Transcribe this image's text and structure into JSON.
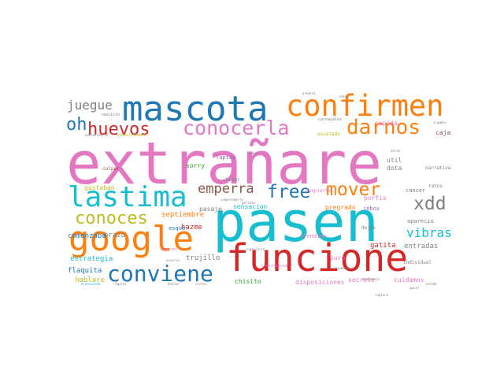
{
  "chart_data": {
    "type": "wordcloud",
    "grid": false,
    "legend": "none",
    "words": [
      {
        "text": "extrañare",
        "weight": 100,
        "color": "#e377c2"
      },
      {
        "text": "pasen",
        "weight": 92,
        "color": "#17becf"
      },
      {
        "text": "funcione",
        "weight": 66,
        "color": "#d62728"
      },
      {
        "text": "mascota",
        "weight": 58,
        "color": "#1f77b4"
      },
      {
        "text": "google",
        "weight": 52,
        "color": "#ff7f0e"
      },
      {
        "text": "confirmen",
        "weight": 48,
        "color": "#ff7f0e"
      },
      {
        "text": "lastima",
        "weight": 46,
        "color": "#17becf"
      },
      {
        "text": "conviene",
        "weight": 36,
        "color": "#1f77b4"
      },
      {
        "text": "darnos",
        "weight": 32,
        "color": "#ff7f0e"
      },
      {
        "text": "conocerla",
        "weight": 30,
        "color": "#e377c2"
      },
      {
        "text": "huevos",
        "weight": 28,
        "color": "#d62728"
      },
      {
        "text": "conoces",
        "weight": 28,
        "color": "#bcbd22"
      },
      {
        "text": "mover",
        "weight": 28,
        "color": "#ff7f0e"
      },
      {
        "text": "free",
        "weight": 27,
        "color": "#1f77b4"
      },
      {
        "text": "xdd",
        "weight": 27,
        "color": "#7f7f7f"
      },
      {
        "text": "oh",
        "weight": 26,
        "color": "#1f77b4"
      },
      {
        "text": "emperra",
        "weight": 22,
        "color": "#8c564b"
      },
      {
        "text": "juegue",
        "weight": 20,
        "color": "#7f7f7f"
      },
      {
        "text": "vibras",
        "weight": 20,
        "color": "#17becf"
      },
      {
        "text": "septiembre",
        "weight": 12,
        "color": "#ff7f0e"
      },
      {
        "text": "hazme",
        "weight": 11,
        "color": "#d62728"
      },
      {
        "text": "brazo",
        "weight": 11,
        "color": "#7f7f7f"
      },
      {
        "text": "comenzaba",
        "weight": 11,
        "color": "#1f77b4"
      },
      {
        "text": "estrategia",
        "weight": 11,
        "color": "#17becf"
      },
      {
        "text": "trujillo",
        "weight": 11,
        "color": "#7f7f7f"
      },
      {
        "text": "flaquita",
        "weight": 11,
        "color": "#1f77b4"
      },
      {
        "text": "hablare",
        "weight": 11,
        "color": "#bcbd22"
      },
      {
        "text": "chisito",
        "weight": 10,
        "color": "#2ca02c"
      },
      {
        "text": "disposiciones",
        "weight": 10,
        "color": "#e377c2"
      },
      {
        "text": "secreto",
        "weight": 10,
        "color": "#e377c2"
      },
      {
        "text": "cuidamos",
        "weight": 10,
        "color": "#e377c2"
      },
      {
        "text": "gatita",
        "weight": 11,
        "color": "#d62728"
      },
      {
        "text": "entradas",
        "weight": 11,
        "color": "#7f7f7f"
      },
      {
        "text": "puro",
        "weight": 10,
        "color": "#e377c2"
      },
      {
        "text": "porfis",
        "weight": 10,
        "color": "#e377c2"
      },
      {
        "text": "inbox",
        "weight": 10,
        "color": "#9467bd"
      },
      {
        "text": "pregrado",
        "weight": 10,
        "color": "#ff7f0e"
      },
      {
        "text": "aparecio",
        "weight": 10,
        "color": "#7f7f7f"
      },
      {
        "text": "cancer",
        "weight": 10,
        "color": "#7f7f7f"
      },
      {
        "text": "gustaban",
        "weight": 10,
        "color": "#bcbd22"
      },
      {
        "text": "pasaje",
        "weight": 10,
        "color": "#7f7f7f"
      },
      {
        "text": "sensacion",
        "weight": 10,
        "color": "#17becf"
      },
      {
        "text": "sorry",
        "weight": 10,
        "color": "#2ca02c"
      },
      {
        "text": "laptop",
        "weight": 10,
        "color": "#9467bd"
      },
      {
        "text": "esque",
        "weight": 9,
        "color": "#1f77b4"
      },
      {
        "text": "chupar",
        "weight": 8,
        "color": "#7f7f7f"
      },
      {
        "text": "culpar",
        "weight": 8,
        "color": "#8c564b"
      },
      {
        "text": "dota",
        "weight": 9,
        "color": "#7f7f7f"
      },
      {
        "text": "util",
        "weight": 9,
        "color": "#7f7f7f"
      },
      {
        "text": "rapida",
        "weight": 9,
        "color": "#e377c2"
      },
      {
        "text": "caja",
        "weight": 9,
        "color": "#8c564b"
      },
      {
        "text": "asustado",
        "weight": 8,
        "color": "#bcbd22"
      },
      {
        "text": "despierto",
        "weight": 8,
        "color": "#e377c2"
      },
      {
        "text": "ofendido",
        "weight": 9,
        "color": "#e377c2"
      },
      {
        "text": "dejas",
        "weight": 8,
        "color": "#7f7f7f"
      },
      {
        "text": "individual",
        "weight": 8,
        "color": "#7f7f7f"
      },
      {
        "text": "narrativa",
        "weight": 7,
        "color": "#7f7f7f"
      },
      {
        "text": "ratos",
        "weight": 7,
        "color": "#7f7f7f"
      },
      {
        "text": "carnavales",
        "weight": 7,
        "color": "#7f7f7f"
      },
      {
        "text": "realisto",
        "weight": 6,
        "color": "#7f7f7f"
      },
      {
        "text": "videollamadas",
        "weight": 6,
        "color": "#bcbd22"
      },
      {
        "text": "insistencia",
        "weight": 6,
        "color": "#e377c2"
      },
      {
        "text": "recomendar",
        "weight": 6,
        "color": "#7f7f7f"
      },
      {
        "text": "adolescencia",
        "weight": 5,
        "color": "#7f7f7f"
      },
      {
        "text": "agarres",
        "weight": 5,
        "color": "#e377c2"
      },
      {
        "text": "subia",
        "weight": 5,
        "color": "#7f7f7f"
      },
      {
        "text": "galleta",
        "weight": 5,
        "color": "#7f7f7f"
      },
      {
        "text": "comprenderlo",
        "weight": 5,
        "color": "#7f7f7f"
      },
      {
        "text": "sigamos",
        "weight": 5,
        "color": "#7f7f7f"
      },
      {
        "text": "premios",
        "weight": 4,
        "color": "#7f7f7f"
      },
      {
        "text": "cohoz",
        "weight": 4,
        "color": "#7f7f7f"
      },
      {
        "text": "ingenieria",
        "weight": 4,
        "color": "#7f7f7f"
      },
      {
        "text": "diaquemia",
        "weight": 4,
        "color": "#7f7f7f"
      },
      {
        "text": "bienvenida",
        "weight": 4,
        "color": "#17becf"
      },
      {
        "text": "regular",
        "weight": 4,
        "color": "#7f7f7f"
      },
      {
        "text": "esceria",
        "weight": 4,
        "color": "#7f7f7f"
      },
      {
        "text": "duelen",
        "weight": 4,
        "color": "#7f7f7f"
      },
      {
        "text": "atrae",
        "weight": 4,
        "color": "#7f7f7f"
      },
      {
        "text": "ruptura",
        "weight": 4,
        "color": "#7f7f7f"
      },
      {
        "text": "apuro",
        "weight": 4,
        "color": "#7f7f7f"
      },
      {
        "text": "saludo",
        "weight": 4,
        "color": "#7f7f7f"
      },
      {
        "text": "vistio",
        "weight": 4,
        "color": "#7f7f7f"
      }
    ]
  }
}
